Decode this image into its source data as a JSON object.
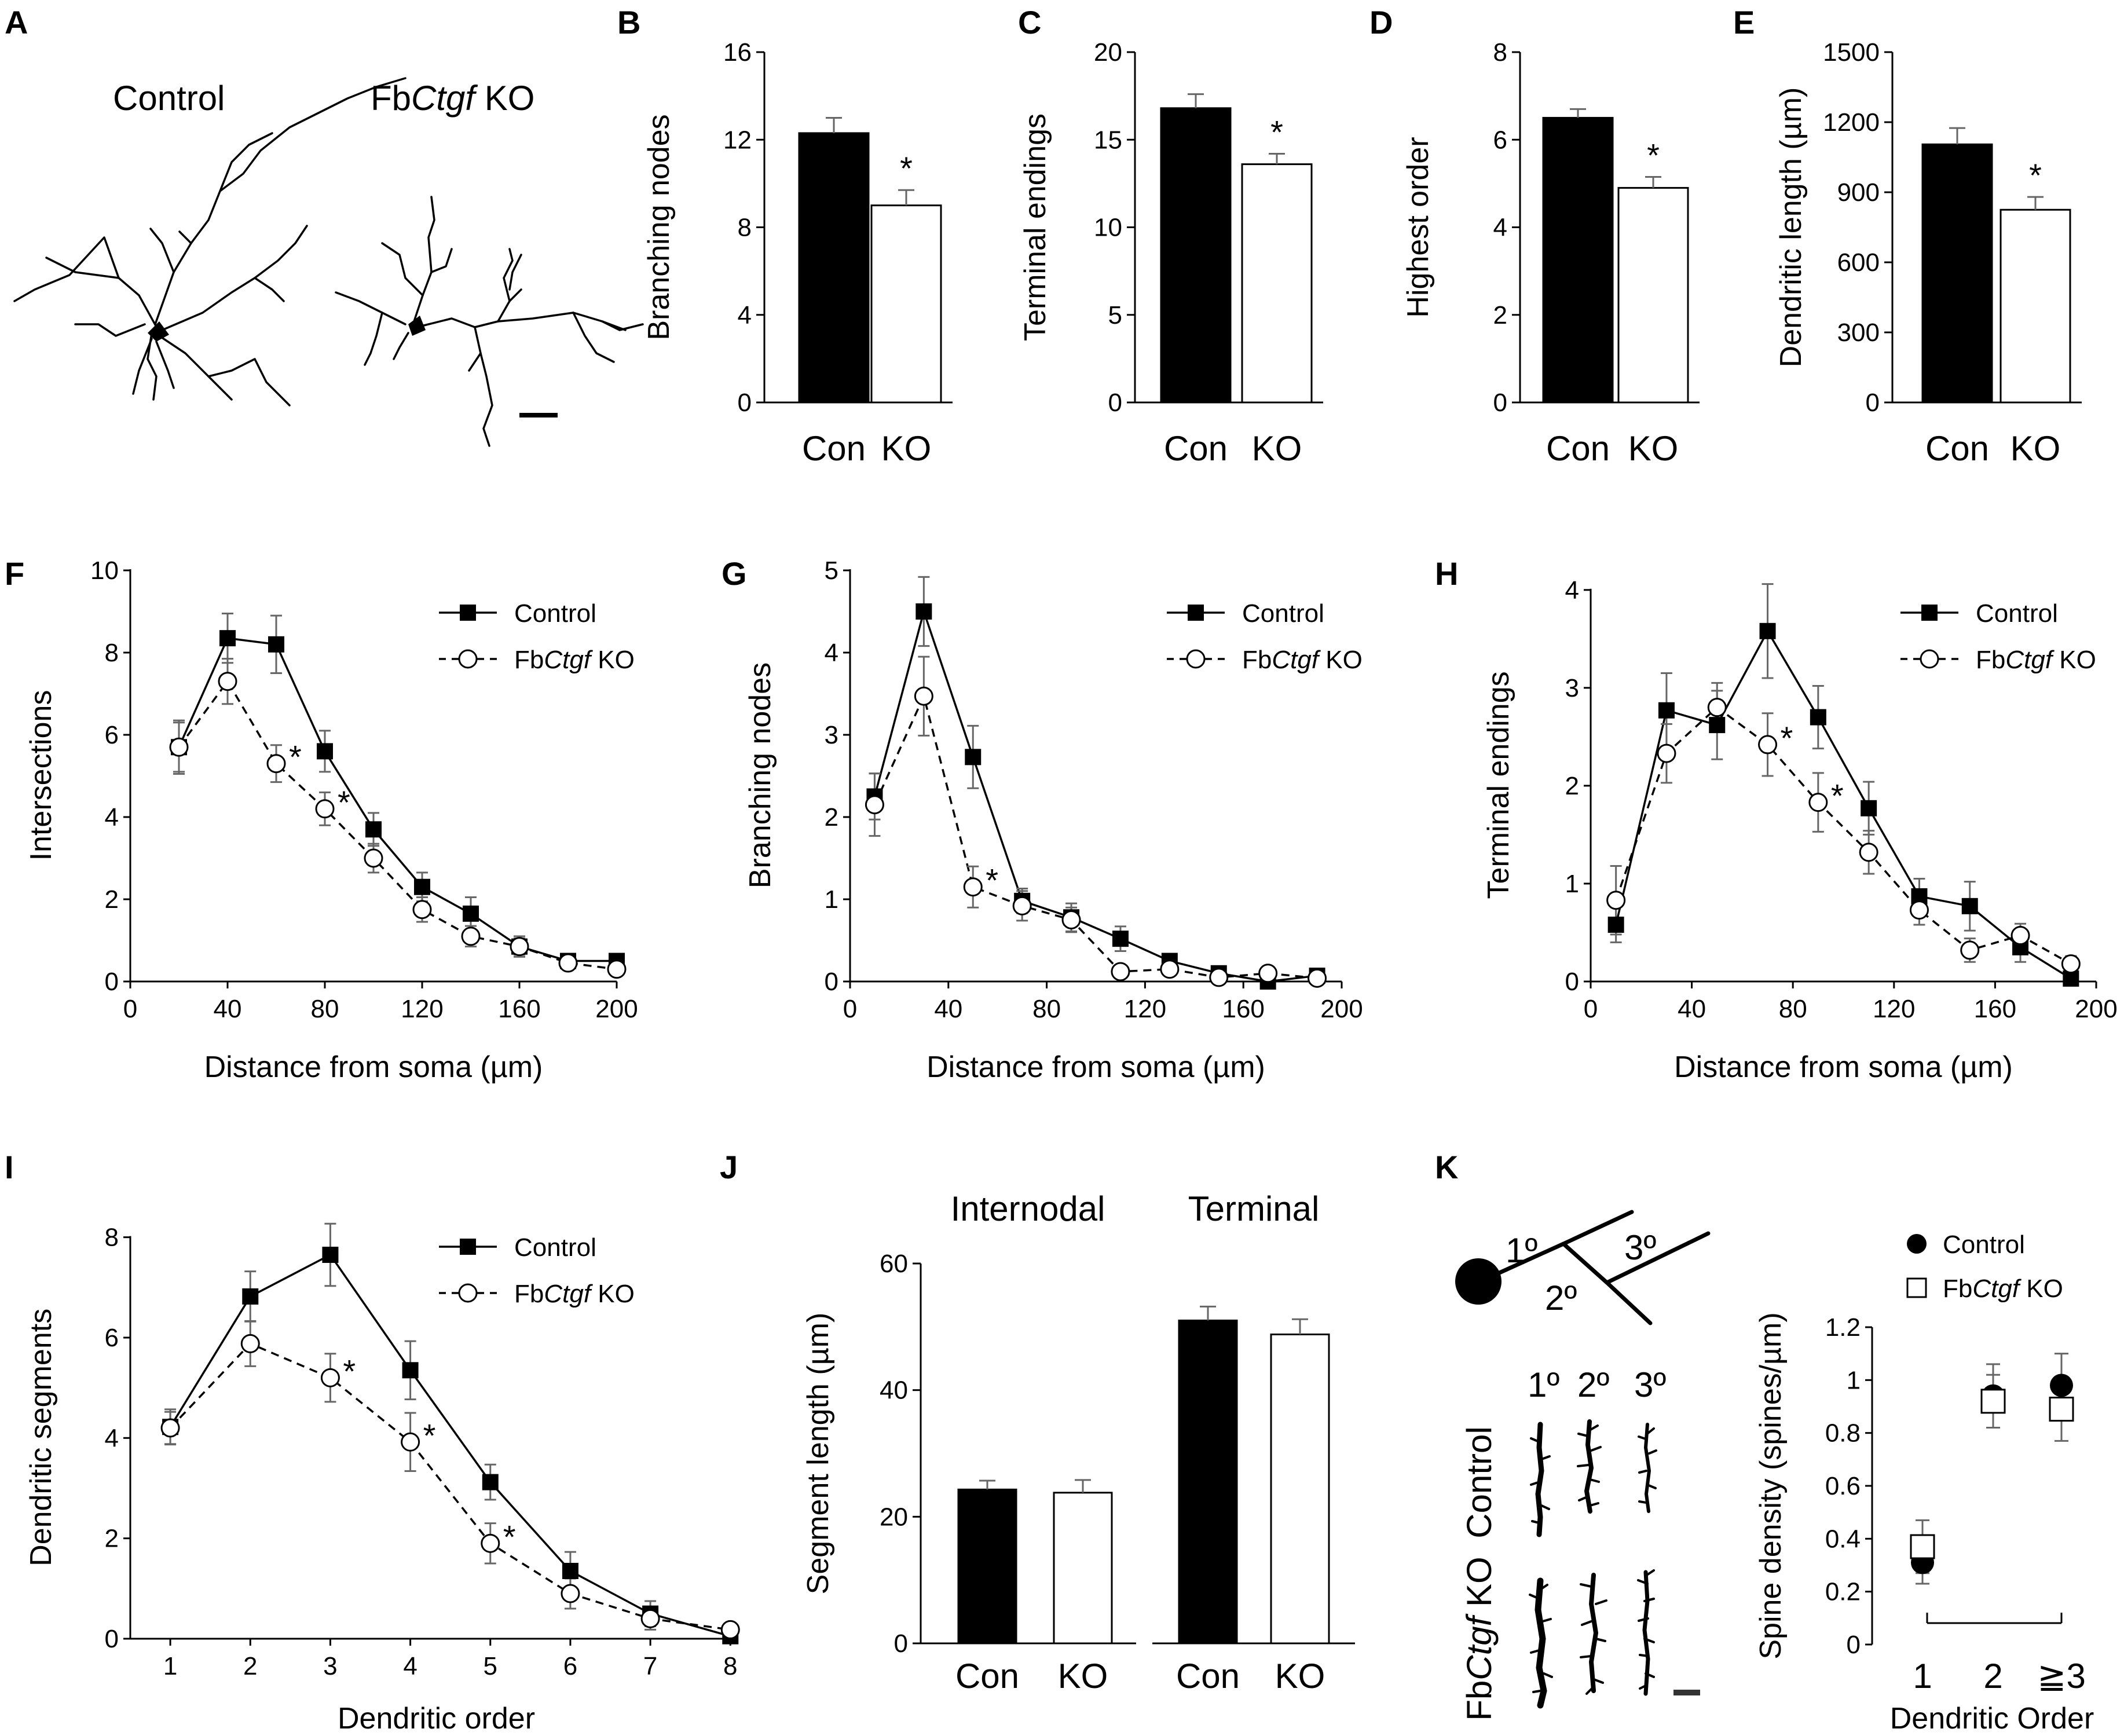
{
  "neurons": {
    "label": "A",
    "control_title": "Control",
    "ko_prefix": "Fb",
    "ko_gene": "Ctgf",
    "ko_suffix": " KO"
  },
  "legend": {
    "control": "Control",
    "ko_prefix": "Fb",
    "ko_gene": "Ctgf",
    "ko_suffix": " KO"
  },
  "chart_data": [
    {
      "id": "B",
      "type": "bar",
      "label": "B",
      "categories": [
        "Con",
        "KO"
      ],
      "values": [
        12.3,
        9.0
      ],
      "errors": [
        0.7,
        0.7
      ],
      "fills": [
        "#000000",
        "#ffffff"
      ],
      "ylabel": "Branching nodes",
      "ylim": [
        0,
        16
      ],
      "yticks": [
        0,
        4,
        8,
        12,
        16
      ],
      "yticklabels": [
        "0",
        "4",
        "8",
        "12",
        "16"
      ],
      "significance": [
        "",
        "*"
      ]
    },
    {
      "id": "C",
      "type": "bar",
      "label": "C",
      "categories": [
        "Con",
        "KO"
      ],
      "values": [
        16.8,
        13.6
      ],
      "errors": [
        0.8,
        0.6
      ],
      "fills": [
        "#000000",
        "#ffffff"
      ],
      "ylabel": "Terminal endings",
      "ylim": [
        0,
        20
      ],
      "yticks": [
        0,
        5,
        10,
        15,
        20
      ],
      "yticklabels": [
        "0",
        "5",
        "10",
        "15",
        "20"
      ],
      "significance": [
        "",
        "*"
      ]
    },
    {
      "id": "D",
      "type": "bar",
      "label": "D",
      "categories": [
        "Con",
        "KO"
      ],
      "values": [
        6.5,
        4.9
      ],
      "errors": [
        0.2,
        0.25
      ],
      "fills": [
        "#000000",
        "#ffffff"
      ],
      "ylabel": "Highest order",
      "ylim": [
        0,
        8
      ],
      "yticks": [
        0,
        2,
        4,
        6,
        8
      ],
      "yticklabels": [
        "0",
        "2",
        "4",
        "6",
        "8"
      ],
      "significance": [
        "",
        "*"
      ]
    },
    {
      "id": "E",
      "type": "bar",
      "label": "E",
      "categories": [
        "Con",
        "KO"
      ],
      "values": [
        1105,
        825
      ],
      "errors": [
        70,
        55
      ],
      "fills": [
        "#000000",
        "#ffffff"
      ],
      "ylabel": "Dendritic length (µm)",
      "ylim": [
        0,
        1500
      ],
      "yticks": [
        0,
        300,
        600,
        900,
        1200,
        1500
      ],
      "yticklabels": [
        "0",
        "300",
        "600",
        "900",
        "1200",
        "1500"
      ],
      "significance": [
        "",
        "*"
      ]
    },
    {
      "id": "F",
      "type": "line",
      "label": "F",
      "xlabel": "Distance from soma (µm)",
      "ylabel": "Intersections",
      "xlim": [
        0,
        200
      ],
      "ylim": [
        0,
        10
      ],
      "xticks": [
        0,
        40,
        80,
        120,
        160,
        200
      ],
      "xticklabels": [
        "0",
        "40",
        "80",
        "120",
        "160",
        "200"
      ],
      "yticks": [
        0,
        2,
        4,
        6,
        8,
        10
      ],
      "yticklabels": [
        "0",
        "2",
        "4",
        "6",
        "8",
        "10"
      ],
      "x": [
        20,
        40,
        60,
        80,
        100,
        120,
        140,
        160,
        180,
        200
      ],
      "series": [
        {
          "name": "Control",
          "marker": "square",
          "dashed": false,
          "values": [
            5.7,
            8.35,
            8.2,
            5.6,
            3.7,
            2.3,
            1.65,
            0.85,
            0.5,
            0.5
          ],
          "errors": [
            0.6,
            0.6,
            0.7,
            0.5,
            0.4,
            0.35,
            0.4,
            0.25,
            0.15,
            0.12
          ]
        },
        {
          "name": "FbCtgf KO",
          "marker": "circle",
          "dashed": true,
          "values": [
            5.7,
            7.3,
            5.3,
            4.2,
            3.0,
            1.75,
            1.1,
            0.85,
            0.45,
            0.3
          ],
          "errors": [
            0.65,
            0.55,
            0.45,
            0.4,
            0.35,
            0.3,
            0.25,
            0.2,
            0.15,
            0.12
          ]
        }
      ],
      "stars": [
        {
          "x": 60,
          "y": 5.3
        },
        {
          "x": 80,
          "y": 4.2
        }
      ]
    },
    {
      "id": "G",
      "type": "line",
      "label": "G",
      "xlabel": "Distance from soma (µm)",
      "ylabel": "Branching nodes",
      "xlim": [
        0,
        200
      ],
      "ylim": [
        0,
        5
      ],
      "xticks": [
        0,
        40,
        80,
        120,
        160,
        200
      ],
      "xticklabels": [
        "0",
        "40",
        "80",
        "120",
        "160",
        "200"
      ],
      "yticks": [
        0,
        1,
        2,
        3,
        4,
        5
      ],
      "yticklabels": [
        "0",
        "1",
        "2",
        "3",
        "4",
        "5"
      ],
      "x": [
        10,
        30,
        50,
        70,
        90,
        110,
        130,
        150,
        170,
        190
      ],
      "series": [
        {
          "name": "Control",
          "marker": "square",
          "dashed": false,
          "values": [
            2.25,
            4.5,
            2.73,
            0.98,
            0.78,
            0.52,
            0.25,
            0.1,
            0.0,
            0.07
          ],
          "errors": [
            0.28,
            0.42,
            0.38,
            0.15,
            0.17,
            0.15,
            0.07,
            0.05,
            0.03,
            0.05
          ]
        },
        {
          "name": "FbCtgf KO",
          "marker": "circle",
          "dashed": true,
          "values": [
            2.15,
            3.47,
            1.15,
            0.92,
            0.75,
            0.12,
            0.15,
            0.05,
            0.1,
            0.04
          ],
          "errors": [
            0.38,
            0.48,
            0.25,
            0.18,
            0.15,
            0.05,
            0.06,
            0.04,
            0.04,
            0.03
          ]
        }
      ],
      "stars": [
        {
          "x": 50,
          "y": 1.15
        }
      ]
    },
    {
      "id": "H",
      "type": "line",
      "label": "H",
      "xlabel": "Distance from soma (µm)",
      "ylabel": "Terminal endings",
      "xlim": [
        0,
        200
      ],
      "ylim": [
        0,
        4.2
      ],
      "xticks": [
        0,
        40,
        80,
        120,
        160,
        200
      ],
      "xticklabels": [
        "0",
        "40",
        "80",
        "120",
        "160",
        "200"
      ],
      "yticks": [
        0,
        1,
        2,
        3,
        4
      ],
      "yticklabels": [
        "0",
        "1",
        "2",
        "3",
        "4"
      ],
      "x": [
        10,
        30,
        50,
        70,
        90,
        110,
        130,
        150,
        170,
        190
      ],
      "series": [
        {
          "name": "Control",
          "marker": "square",
          "dashed": false,
          "values": [
            0.58,
            2.77,
            2.62,
            3.58,
            2.7,
            1.77,
            0.87,
            0.77,
            0.35,
            0.03
          ],
          "errors": [
            0.18,
            0.38,
            0.35,
            0.48,
            0.32,
            0.27,
            0.18,
            0.25,
            0.15,
            0.04
          ]
        },
        {
          "name": "FbCtgf KO",
          "marker": "circle",
          "dashed": true,
          "values": [
            0.83,
            2.33,
            2.8,
            2.42,
            1.83,
            1.32,
            0.73,
            0.32,
            0.47,
            0.18
          ],
          "errors": [
            0.35,
            0.3,
            0.25,
            0.32,
            0.3,
            0.22,
            0.15,
            0.12,
            0.12,
            0.08
          ]
        }
      ],
      "stars": [
        {
          "x": 70,
          "y": 2.42
        },
        {
          "x": 90,
          "y": 1.83
        }
      ]
    },
    {
      "id": "I",
      "type": "line",
      "label": "I",
      "xlabel": "Dendritic order",
      "ylabel": "Dendritic segments",
      "xlim": [
        0.5,
        8.15
      ],
      "ylim": [
        0,
        9
      ],
      "xticks": [
        1,
        2,
        3,
        4,
        5,
        6,
        7,
        8
      ],
      "xticklabels": [
        "1",
        "2",
        "3",
        "4",
        "5",
        "6",
        "7",
        "8"
      ],
      "yticks": [
        0,
        2,
        4,
        6,
        8
      ],
      "yticklabels": [
        "0",
        "2",
        "4",
        "6",
        "8"
      ],
      "x": [
        1,
        2,
        3,
        4,
        5,
        6,
        7,
        8
      ],
      "series": [
        {
          "name": "Control",
          "marker": "square",
          "dashed": false,
          "values": [
            4.22,
            6.82,
            7.65,
            5.35,
            3.12,
            1.35,
            0.5,
            0.05
          ],
          "errors": [
            0.35,
            0.5,
            0.62,
            0.58,
            0.35,
            0.38,
            0.25,
            0.1
          ]
        },
        {
          "name": "FbCtgf KO",
          "marker": "circle",
          "dashed": true,
          "values": [
            4.2,
            5.88,
            5.2,
            3.92,
            1.9,
            0.9,
            0.4,
            0.18
          ],
          "errors": [
            0.32,
            0.45,
            0.48,
            0.58,
            0.4,
            0.3,
            0.22,
            0.1
          ]
        }
      ],
      "stars": [
        {
          "x": 3,
          "y": 5.2
        },
        {
          "x": 4,
          "y": 3.92
        },
        {
          "x": 5,
          "y": 1.9
        }
      ]
    },
    {
      "id": "J",
      "type": "bar",
      "label": "J",
      "group_titles": [
        "Internodal",
        "Terminal"
      ],
      "categories": [
        "Con",
        "KO",
        "Con",
        "KO"
      ],
      "values": [
        24.3,
        23.8,
        51.0,
        48.8
      ],
      "errors": [
        1.4,
        2.0,
        2.2,
        2.4
      ],
      "fills": [
        "#000000",
        "#ffffff",
        "#000000",
        "#ffffff"
      ],
      "ylabel": "Segment length (µm)",
      "ylim": [
        0,
        60
      ],
      "yticks": [
        0,
        20,
        40,
        60
      ],
      "yticklabels": [
        "0",
        "20",
        "40",
        "60"
      ]
    },
    {
      "id": "K",
      "type": "scatter",
      "label": "K",
      "xlabel": "Dendritic Order",
      "ylabel": "Spine density (spines/µm)",
      "categories": [
        "1",
        "2",
        "≧3"
      ],
      "ylim": [
        0,
        1.2
      ],
      "yticks": [
        0,
        0.2,
        0.4,
        0.6,
        0.8,
        1.0,
        1.2
      ],
      "yticklabels": [
        "0",
        "0.2",
        "0.4",
        "0.6",
        "0.8",
        "1",
        "1.2"
      ],
      "series": [
        {
          "name": "Control",
          "marker": "circle-filled",
          "values": [
            0.31,
            0.94,
            0.98
          ],
          "errors": [
            0.08,
            0.12,
            0.12
          ]
        },
        {
          "name": "FbCtgf KO",
          "marker": "square-open",
          "values": [
            0.37,
            0.92,
            0.89
          ],
          "errors": [
            0.1,
            0.1,
            0.12
          ]
        }
      ],
      "schematic_orders": [
        "1º",
        "2º",
        "3º"
      ],
      "row_labels": [
        "Control",
        "FbCtgf KO"
      ],
      "column_labels": [
        "1º",
        "2º",
        "3º"
      ]
    }
  ]
}
